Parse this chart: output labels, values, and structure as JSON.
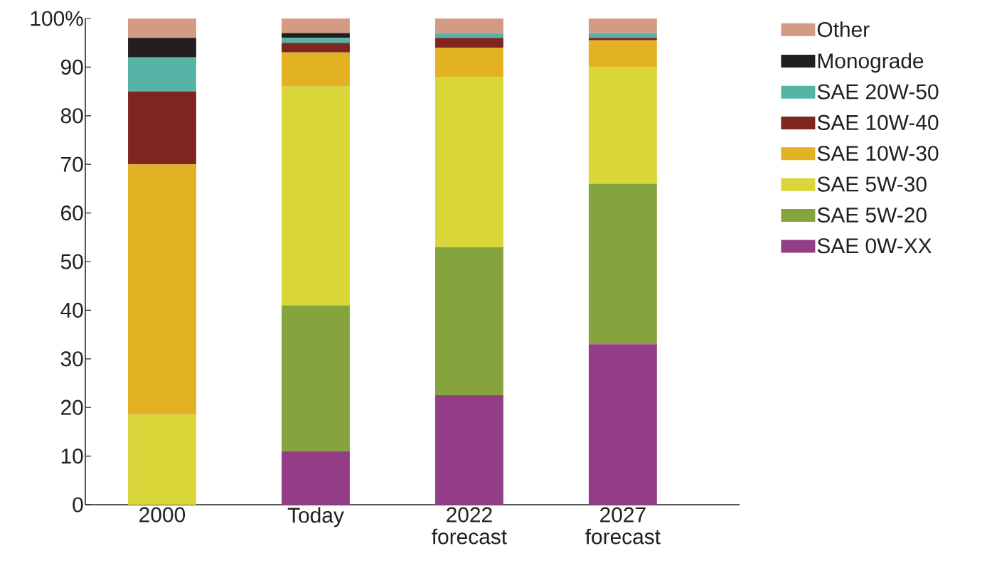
{
  "chart_data": {
    "type": "bar",
    "stacked": true,
    "categories": [
      "2000",
      "Today",
      "2022 forecast",
      "2027 forecast"
    ],
    "series": [
      {
        "name": "SAE 0W-XX",
        "color": "#923d86",
        "values": [
          0,
          11,
          22.5,
          33
        ]
      },
      {
        "name": "SAE 5W-20",
        "color": "#85a43e",
        "values": [
          0,
          30,
          30.5,
          33
        ]
      },
      {
        "name": "SAE 5W-30",
        "color": "#d9d63a",
        "values": [
          18.5,
          45,
          35,
          24
        ]
      },
      {
        "name": "SAE 10W-30",
        "color": "#e3b224",
        "values": [
          51.5,
          7,
          6,
          5.5
        ]
      },
      {
        "name": "SAE 10W-40",
        "color": "#812520",
        "values": [
          15,
          2,
          2,
          0.5
        ]
      },
      {
        "name": "SAE 20W-50",
        "color": "#55b4a6",
        "values": [
          7,
          1,
          1,
          1
        ]
      },
      {
        "name": "Monograde",
        "color": "#231f20",
        "values": [
          4,
          1,
          0,
          0
        ]
      },
      {
        "name": "Other",
        "color": "#d39a84",
        "values": [
          4,
          3,
          3,
          3
        ]
      }
    ],
    "ylim": [
      0,
      100
    ],
    "yticks": [
      0,
      10,
      20,
      30,
      40,
      50,
      60,
      70,
      80,
      90,
      {
        "value": 100,
        "label": "100%"
      }
    ],
    "legend": "right"
  }
}
